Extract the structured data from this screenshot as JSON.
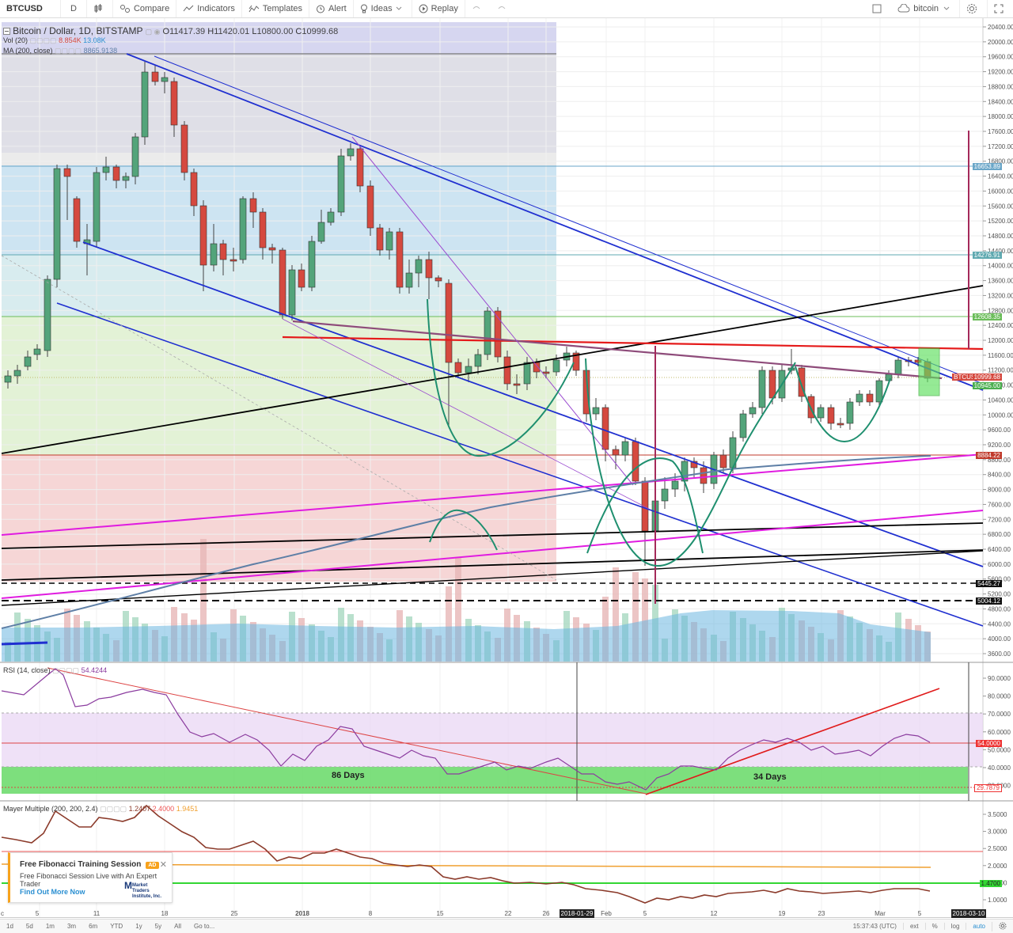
{
  "toolbar": {
    "symbol": "BTCUSD",
    "interval": "D",
    "compare": "Compare",
    "indicators": "Indicators",
    "templates": "Templates",
    "alert": "Alert",
    "ideas": "Ideas",
    "replay": "Replay",
    "search_value": "bitcoin"
  },
  "legend": {
    "title": "Bitcoin / Dollar, 1D, BITSTAMP",
    "open_label": "O",
    "open": "11417.39",
    "high_label": "H",
    "high": "11420.01",
    "low_label": "L",
    "low": "10800.00",
    "close_label": "C",
    "close": "10999.68",
    "vol_label": "Vol (20)",
    "vol_a": "8.854K",
    "vol_b": "13.08K",
    "ma_label": "MA (200, close)",
    "ma_value": "8865.9138"
  },
  "price_axis": [
    "20400.00",
    "20000.00",
    "19600.00",
    "19200.00",
    "18800.00",
    "18400.00",
    "18000.00",
    "17600.00",
    "17200.00",
    "16800.00",
    "16400.00",
    "16000.00",
    "15600.00",
    "15200.00",
    "14800.00",
    "14400.00",
    "14000.00",
    "13600.00",
    "13200.00",
    "12800.00",
    "12400.00",
    "12000.00",
    "11600.00",
    "11200.00",
    "10800.00",
    "10400.00",
    "10000.00",
    "9600.00",
    "9200.00",
    "8800.00",
    "8400.00",
    "8000.00",
    "7600.00",
    "7200.00",
    "6800.00",
    "6400.00",
    "6000.00",
    "5600.00",
    "5200.00",
    "4800.00",
    "4400.00",
    "4000.00",
    "3600.00"
  ],
  "price_labels": {
    "p16653": "16653.89",
    "p14276": "14276.91",
    "p12608": "12608.35",
    "btcusd": "BTCUSD",
    "last": "10999.68",
    "p10945": "10945.00",
    "p8884": "8884.22",
    "p5445": "5445.27",
    "p5004": "5004.12"
  },
  "rsi": {
    "label": "RSI (14, close)",
    "value": "54.4244",
    "axis": [
      "90.0000",
      "80.0000",
      "70.0000",
      "60.0000",
      "50.0000",
      "40.0000",
      "30.0000"
    ],
    "tag_54": "54.0000",
    "tag_29": "29.7879",
    "days_a": "86 Days",
    "days_b": "34 Days"
  },
  "mayer": {
    "label": "Mayer Multiple (200, 200, 2.4)",
    "v1": "1.2407",
    "v2": "2.4000",
    "v3": "1.9451",
    "axis": [
      "3.5000",
      "3.0000",
      "2.5000",
      "2.0000",
      "1.5000",
      "1.0000"
    ],
    "tag": "1.4700"
  },
  "time_axis": {
    "labels": [
      "c",
      "5",
      "11",
      "18",
      "25",
      "2018",
      "8",
      "15",
      "22",
      "26",
      "Feb",
      "5",
      "12",
      "19",
      "23",
      "Mar",
      "5"
    ],
    "cursor_a": "2018-01-29",
    "cursor_b": "2018-03-10"
  },
  "bottombar": {
    "ranges": [
      "1d",
      "5d",
      "1m",
      "3m",
      "6m",
      "YTD",
      "1y",
      "5y",
      "All",
      "Go to..."
    ],
    "clock": "15:37:43 (UTC)",
    "ext": "ext",
    "pct": "%",
    "log": "log",
    "auto": "auto"
  },
  "ad": {
    "title": "Free Fibonacci Training Session",
    "badge": "AD",
    "subtitle": "Free Fibonacci Session Live with An Expert Trader",
    "link": "Find Out More Now",
    "logo": "Market Traders Institute, Inc."
  },
  "colors": {
    "up": "#53a47a",
    "down": "#d5493f",
    "accent_blue": "#2a8fd1"
  }
}
